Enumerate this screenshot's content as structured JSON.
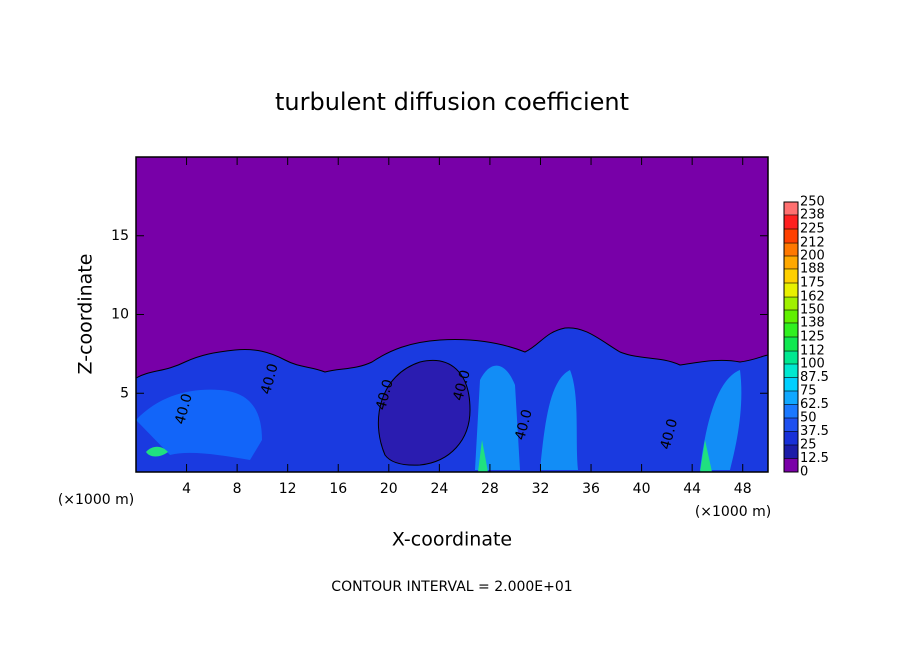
{
  "chart_data": {
    "type": "contour",
    "title": "turbulent diffusion coefficient",
    "x_label": "X-coordinate",
    "y_label": "Z-coordinate",
    "x_unit": "(×1000 m)",
    "y_unit": "(×1000 m)",
    "footnote": "CONTOUR INTERVAL = 2.000E+01",
    "xlim": [
      0,
      50
    ],
    "ylim": [
      0,
      20
    ],
    "xticks": [
      4,
      8,
      12,
      16,
      20,
      24,
      28,
      32,
      36,
      40,
      44,
      48
    ],
    "yticks": [
      5,
      10,
      15
    ],
    "contour_labels": [
      {
        "label": "40.0",
        "x": 3.8,
        "y": 4
      },
      {
        "label": "40.0",
        "x": 10.6,
        "y": 5.9
      },
      {
        "label": "40.0",
        "x": 19.7,
        "y": 4.9
      },
      {
        "label": "40.0",
        "x": 25.8,
        "y": 5.5
      },
      {
        "label": "40.0",
        "x": 30.7,
        "y": 3
      },
      {
        "label": "40.0",
        "x": 42.2,
        "y": 2.4
      }
    ],
    "colorbar": {
      "ticks": [
        0,
        12.5,
        25,
        37.5,
        50,
        62.5,
        75,
        87.5,
        100,
        112,
        125,
        138,
        150,
        162,
        175,
        188,
        200,
        212,
        225,
        238,
        250
      ],
      "colors": [
        "#7a00a8",
        "#1c1ca8",
        "#1830d8",
        "#1e50f0",
        "#1a78ff",
        "#10a8ff",
        "#00d0ff",
        "#00e8d0",
        "#00e890",
        "#10e850",
        "#30f020",
        "#60f000",
        "#a0f000",
        "#e8f000",
        "#ffd000",
        "#ffa800",
        "#ff7800",
        "#ff4000",
        "#ff2020",
        "#ff7070"
      ]
    }
  }
}
